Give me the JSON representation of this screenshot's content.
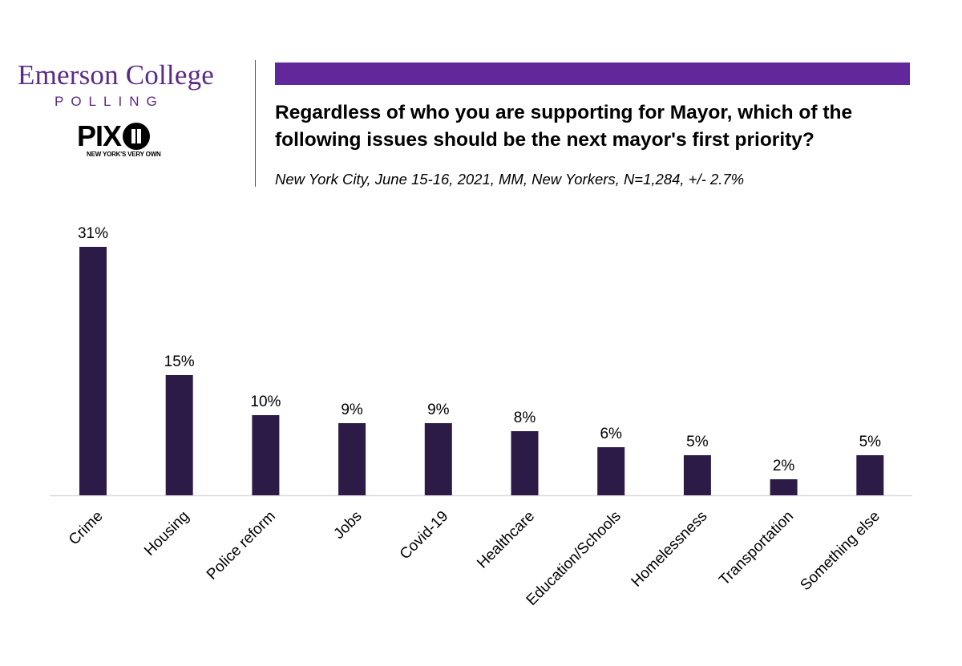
{
  "header": {
    "logo_title": "Emerson College",
    "logo_subtitle": "POLLING",
    "partner_logo_text": "PIX",
    "partner_tagline": "NEW YORK'S VERY OWN",
    "title": "Regardless of who you are supporting for Mayor, which of the following issues should be the next mayor's first priority?",
    "subtitle": "New York City, June 15-16, 2021, MM, New Yorkers, N=1,284, +/- 2.7%"
  },
  "colors": {
    "brand_purple": "#5b2a86",
    "accent_bar": "#62279b",
    "bar_fill": "#2d1b47",
    "axis": "#d9d9d9"
  },
  "chart_data": {
    "type": "bar",
    "title": "Regardless of who you are supporting for Mayor, which of the following issues should be the next mayor's first priority?",
    "xlabel": "",
    "ylabel": "",
    "categories": [
      "Crime",
      "Housing",
      "Police reform",
      "Jobs",
      "Covid-19",
      "Healthcare",
      "Education/Schools",
      "Homelessness",
      "Transportation",
      "Something else"
    ],
    "values": [
      31,
      15,
      10,
      9,
      9,
      8,
      6,
      5,
      2,
      5
    ],
    "data_labels": [
      "31%",
      "15%",
      "10%",
      "9%",
      "9%",
      "8%",
      "6%",
      "5%",
      "2%",
      "5%"
    ],
    "ylim": [
      0,
      31
    ],
    "grid": false,
    "legend": "none"
  }
}
